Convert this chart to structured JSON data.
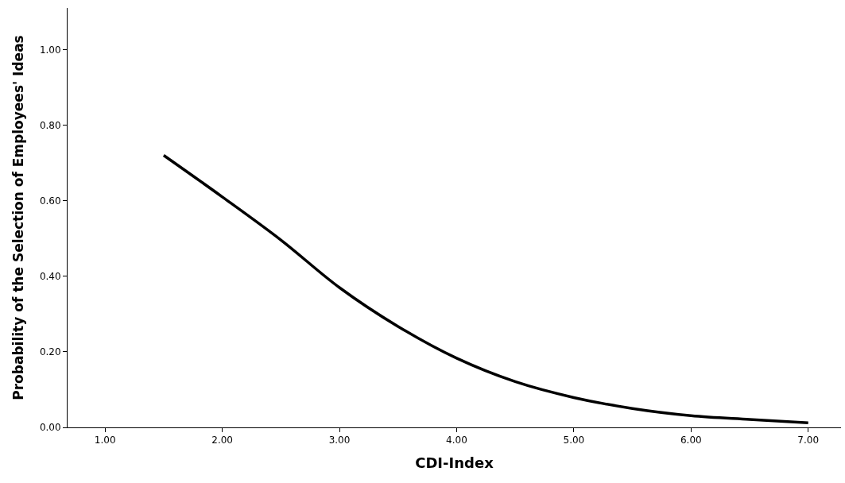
{
  "chart_data": {
    "type": "line",
    "xlabel": "CDI-Index",
    "ylabel": "Probability of the Selection of Employees' Ideas",
    "x": [
      1.5,
      2,
      2.5,
      3,
      3.5,
      4,
      4.5,
      5,
      5.5,
      6,
      6.5,
      7
    ],
    "series": [
      {
        "color": "#000000",
        "values": [
          0.72,
          0.61,
          0.496,
          0.37,
          0.267,
          0.183,
          0.121,
          0.079,
          0.05,
          0.031,
          0.021,
          0.012
        ]
      }
    ],
    "xlim": [
      0.68,
      7.28
    ],
    "ylim": [
      0,
      1.11
    ],
    "xticks": [
      {
        "value": 1,
        "label": "1.00"
      },
      {
        "value": 2,
        "label": "2.00"
      },
      {
        "value": 3,
        "label": "3.00"
      },
      {
        "value": 4,
        "label": "4.00"
      },
      {
        "value": 5,
        "label": "5.00"
      },
      {
        "value": 6,
        "label": "6.00"
      },
      {
        "value": 7,
        "label": "7.00"
      }
    ],
    "yticks": [
      {
        "value": 0,
        "label": "0.00"
      },
      {
        "value": 0.2,
        "label": "0.20"
      },
      {
        "value": 0.4,
        "label": "0.40"
      },
      {
        "value": 0.6,
        "label": "0.60"
      },
      {
        "value": 0.8,
        "label": "0.80"
      },
      {
        "value": 1,
        "label": "1.00"
      }
    ],
    "marker": "none",
    "line_style": "solid"
  }
}
